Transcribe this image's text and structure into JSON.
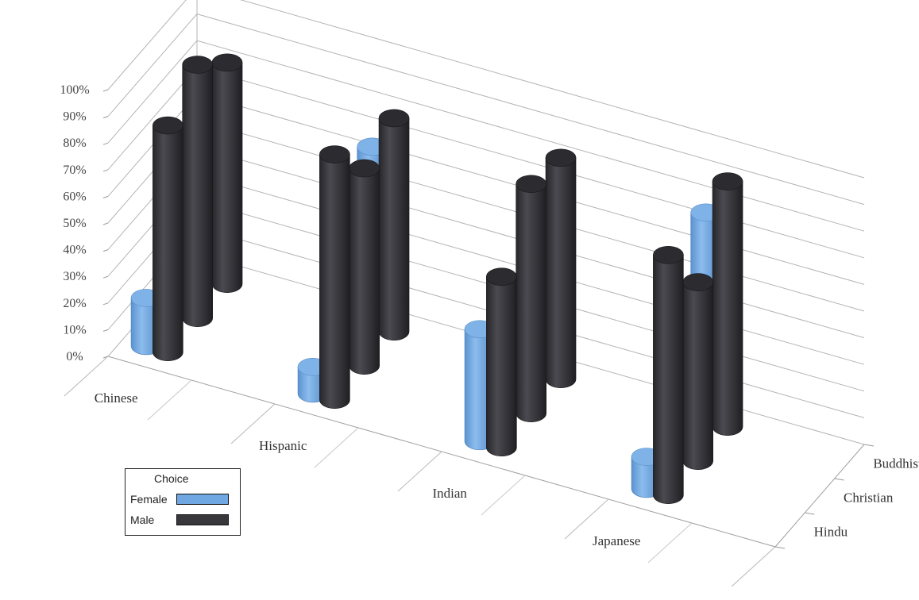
{
  "chart_data": {
    "type": "bar",
    "style": "3d-cylinder",
    "categories": [
      "Chinese",
      "Hispanic",
      "Indian",
      "Japanese"
    ],
    "depth_categories": [
      "Hindu",
      "Christian",
      "Buddhist"
    ],
    "series": [
      {
        "name": "Female",
        "color": "#6ea7e1",
        "values": {
          "Chinese": {
            "Hindu": 18,
            "Christian": 12,
            "Buddhist": 62
          },
          "Hispanic": {
            "Hindu": 10,
            "Christian": 33,
            "Buddhist": 67
          },
          "Indian": {
            "Hindu": 42,
            "Christian": 15,
            "Buddhist": 59
          },
          "Japanese": {
            "Hindu": 12,
            "Christian": 39,
            "Buddhist": 78
          }
        }
      },
      {
        "name": "Male",
        "color": "#37373c",
        "values": {
          "Chinese": {
            "Hindu": 85,
            "Christian": 95,
            "Buddhist": 83
          },
          "Hispanic": {
            "Hindu": 92,
            "Christian": 74,
            "Buddhist": 80
          },
          "Indian": {
            "Hindu": 64,
            "Christian": 86,
            "Buddhist": 83
          },
          "Japanese": {
            "Hindu": 90,
            "Christian": 67,
            "Buddhist": 92
          }
        }
      }
    ],
    "y_ticks": [
      "0%",
      "10%",
      "20%",
      "30%",
      "40%",
      "50%",
      "60%",
      "70%",
      "80%",
      "90%",
      "100%"
    ],
    "ylim": [
      0,
      100
    ],
    "grid": true,
    "legend": {
      "title": "Choice",
      "position": "bottom-left"
    }
  }
}
